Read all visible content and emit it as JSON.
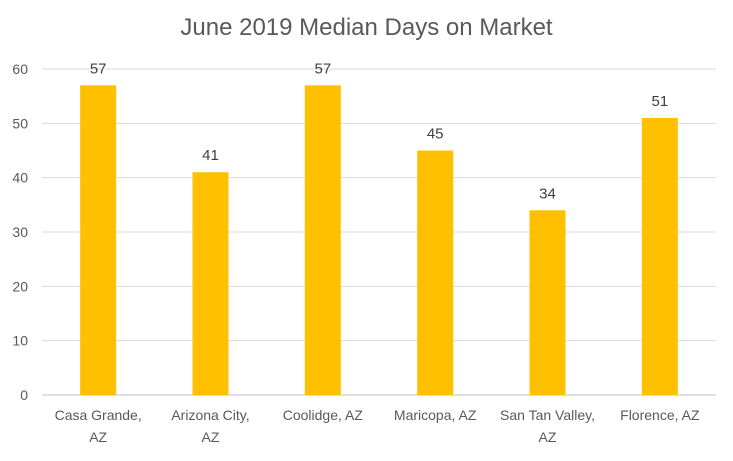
{
  "chart_data": {
    "type": "bar",
    "title": "June 2019 Median Days on Market",
    "xlabel": "",
    "ylabel": "",
    "categories": [
      [
        "Casa Grande,",
        "AZ"
      ],
      [
        "Arizona City,",
        "AZ"
      ],
      [
        "Coolidge, AZ"
      ],
      [
        "Maricopa, AZ"
      ],
      [
        "San Tan Valley,",
        "AZ"
      ],
      [
        "Florence, AZ"
      ]
    ],
    "values": [
      57,
      41,
      57,
      45,
      34,
      51
    ],
    "ylim": [
      0,
      60
    ],
    "yticks": [
      0,
      10,
      20,
      30,
      40,
      50,
      60
    ],
    "grid": true,
    "data_labels": true,
    "bar_color": "#FFC000",
    "grid_color": "#D9D9D9"
  }
}
